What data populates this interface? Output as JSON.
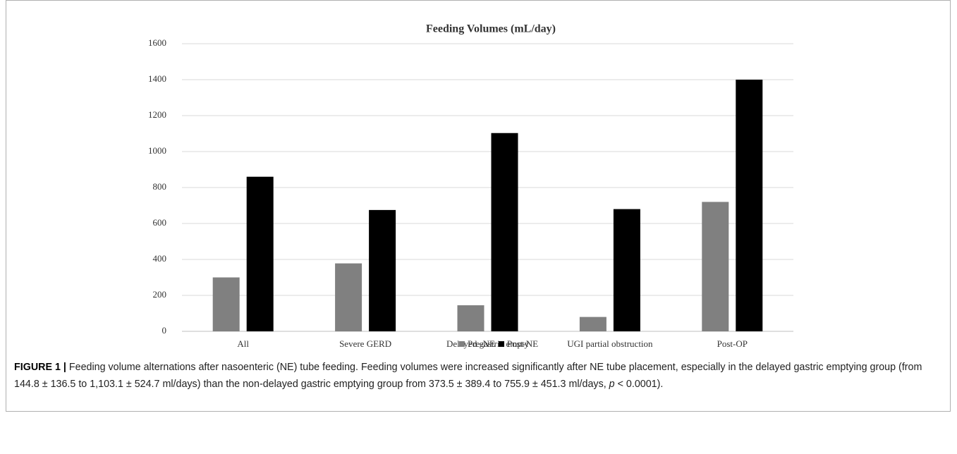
{
  "chart_data": {
    "type": "bar",
    "title": "Feeding Volumes (mL/day)",
    "categories": [
      "All",
      "Severe GERD",
      "Delayed gastric empty",
      "UGI partial obstruction",
      "Post-OP"
    ],
    "series": [
      {
        "name": "Pre-NE",
        "color": "#808080",
        "values": [
          300,
          378,
          145,
          80,
          720
        ]
      },
      {
        "name": "Post-NE",
        "color": "#000000",
        "values": [
          860,
          675,
          1103,
          680,
          1400
        ]
      }
    ],
    "ylim": [
      0,
      1600
    ],
    "yticks": [
      0,
      200,
      400,
      600,
      800,
      1000,
      1200,
      1400,
      1600
    ],
    "grid": true,
    "legend": "bottom"
  },
  "caption": {
    "label": "FIGURE 1 |",
    "text_before": " Feeding volume alternations after nasoenteric (NE) tube feeding. Feeding volumes were increased significantly after NE tube placement, especially in the delayed gastric emptying group (from 144.8 ± 136.5 to 1,103.1 ± 524.7 ml/days) than the non-delayed gastric emptying group from 373.5 ± 389.4 to 755.9 ± 451.3 ml/days, ",
    "italic": "p",
    "text_after": " < 0.0001)."
  }
}
